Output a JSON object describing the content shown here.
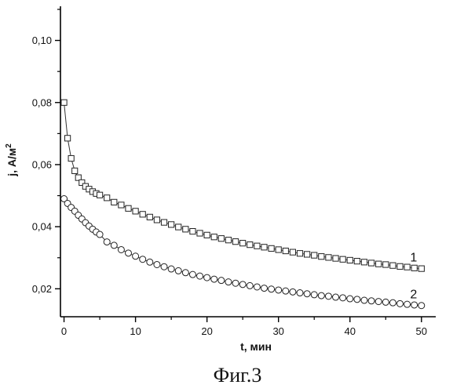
{
  "caption": "Фиг.3",
  "chart_data": {
    "type": "line",
    "xlabel": "t, мин",
    "ylabel": "j, А/м",
    "ylabel_sup": "2",
    "xlim": [
      -0.5,
      52
    ],
    "ylim": [
      0.011,
      0.111
    ],
    "xticks": [
      0,
      10,
      20,
      30,
      40,
      50
    ],
    "xtick_labels": [
      "0",
      "10",
      "20",
      "30",
      "40",
      "50"
    ],
    "yticks": [
      0.02,
      0.04,
      0.06,
      0.08,
      0.1
    ],
    "ytick_labels": [
      "0,02",
      "0,04",
      "0,06",
      "0,08",
      "0,10"
    ],
    "grid": false,
    "series": [
      {
        "name": "1",
        "marker": "square",
        "x": [
          0,
          0.5,
          1,
          1.5,
          2,
          2.5,
          3,
          3.5,
          4,
          4.5,
          5,
          6,
          7,
          8,
          9,
          10,
          11,
          12,
          13,
          14,
          15,
          16,
          17,
          18,
          19,
          20,
          21,
          22,
          23,
          24,
          25,
          26,
          27,
          28,
          29,
          30,
          31,
          32,
          33,
          34,
          35,
          36,
          37,
          38,
          39,
          40,
          41,
          42,
          43,
          44,
          45,
          46,
          47,
          48,
          49,
          50
        ],
        "y": [
          0.08,
          0.0685,
          0.062,
          0.058,
          0.0558,
          0.0542,
          0.053,
          0.0521,
          0.0513,
          0.0507,
          0.0502,
          0.0493,
          0.0479,
          0.047,
          0.0459,
          0.045,
          0.044,
          0.0431,
          0.0422,
          0.0414,
          0.0407,
          0.0399,
          0.0392,
          0.0385,
          0.0379,
          0.0373,
          0.0367,
          0.0362,
          0.0357,
          0.0352,
          0.0347,
          0.0342,
          0.0338,
          0.0334,
          0.033,
          0.0326,
          0.0322,
          0.0318,
          0.0314,
          0.0311,
          0.0308,
          0.0304,
          0.0301,
          0.0298,
          0.0295,
          0.0292,
          0.0289,
          0.0286,
          0.0283,
          0.028,
          0.0278,
          0.0275,
          0.0272,
          0.027,
          0.0267,
          0.0265
        ]
      },
      {
        "name": "2",
        "marker": "circle",
        "x": [
          0,
          0.5,
          1,
          1.5,
          2,
          2.5,
          3,
          3.5,
          4,
          4.5,
          5,
          6,
          7,
          8,
          9,
          10,
          11,
          12,
          13,
          14,
          15,
          16,
          17,
          18,
          19,
          20,
          21,
          22,
          23,
          24,
          25,
          26,
          27,
          28,
          29,
          30,
          31,
          32,
          33,
          34,
          35,
          36,
          37,
          38,
          39,
          40,
          41,
          42,
          43,
          44,
          45,
          46,
          47,
          48,
          49,
          50
        ],
        "y": [
          0.049,
          0.0475,
          0.0462,
          0.045,
          0.0437,
          0.0425,
          0.0413,
          0.0402,
          0.0392,
          0.0383,
          0.0375,
          0.0351,
          0.034,
          0.0326,
          0.0315,
          0.0305,
          0.0295,
          0.0286,
          0.0278,
          0.0271,
          0.0264,
          0.0258,
          0.0252,
          0.0246,
          0.0241,
          0.0236,
          0.0231,
          0.0227,
          0.0222,
          0.0218,
          0.0214,
          0.021,
          0.0206,
          0.0202,
          0.0199,
          0.0196,
          0.0193,
          0.019,
          0.0187,
          0.0184,
          0.0181,
          0.0178,
          0.0176,
          0.0173,
          0.0171,
          0.0168,
          0.0166,
          0.0163,
          0.0161,
          0.0159,
          0.0157,
          0.0155,
          0.0152,
          0.015,
          0.0148,
          0.0146
        ]
      }
    ]
  }
}
